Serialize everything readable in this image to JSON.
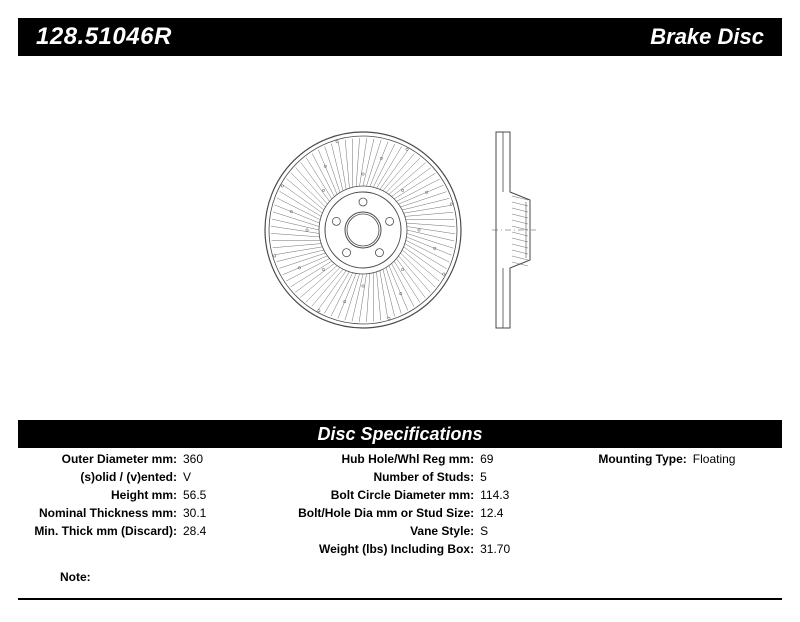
{
  "header": {
    "part_number": "128.51046R",
    "product_type": "Brake Disc"
  },
  "diagram": {
    "front_view": {
      "outer_radius": 98,
      "hub_outer_radius": 38,
      "hub_hole_radius": 18,
      "bolt_circle_radius": 28,
      "bolt_hole_radius": 4,
      "num_bolts": 5,
      "num_vanes": 80,
      "stroke_color": "#4a4a4a",
      "stroke_width": 0.8
    },
    "side_view": {
      "width": 40,
      "height": 196,
      "stroke_color": "#4a4a4a"
    }
  },
  "spec_section": {
    "title": "Disc Specifications",
    "col1": [
      {
        "label": "Outer Diameter mm:",
        "value": "360"
      },
      {
        "label": "(s)olid / (v)ented:",
        "value": "V"
      },
      {
        "label": "Height mm:",
        "value": "56.5"
      },
      {
        "label": "Nominal Thickness mm:",
        "value": "30.1"
      },
      {
        "label": "Min. Thick mm (Discard):",
        "value": "28.4"
      }
    ],
    "col2": [
      {
        "label": "Hub Hole/Whl Reg mm:",
        "value": "69"
      },
      {
        "label": "Number of Studs:",
        "value": "5"
      },
      {
        "label": "Bolt Circle Diameter mm:",
        "value": "114.3"
      },
      {
        "label": "Bolt/Hole Dia mm or Stud Size:",
        "value": "12.4"
      },
      {
        "label": "Vane Style:",
        "value": "S"
      },
      {
        "label": "Weight (lbs) Including Box:",
        "value": "31.70"
      }
    ],
    "col3": [
      {
        "label": "Mounting Type:",
        "value": "Floating"
      }
    ],
    "note_label": "Note:"
  }
}
